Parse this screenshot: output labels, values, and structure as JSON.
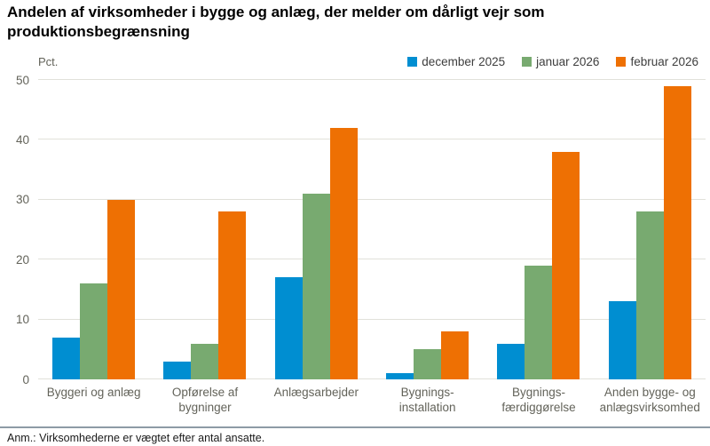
{
  "title": "Andelen af virksomheder i bygge og anlæg, der melder om dårligt vejr som produktionsbegrænsning",
  "unit_label": "Pct.",
  "footnote": "Anm.: Virksomhederne er vægtet efter antal ansatte.",
  "colors": {
    "series_blue": "#008ed1",
    "series_green": "#78aa70",
    "series_orange": "#ee7003"
  },
  "chart_data": {
    "type": "bar",
    "title": "Andelen af virksomheder i bygge og anlæg, der melder om dårligt vejr som produktionsbegrænsning",
    "xlabel": "",
    "ylabel": "Pct.",
    "ylim": [
      0,
      50
    ],
    "yticks": [
      0,
      10,
      20,
      30,
      40,
      50
    ],
    "grid": true,
    "legend_position": "top-right",
    "categories": [
      "Byggeri og anlæg",
      "Opførelse af\nbygninger",
      "Anlægsarbejder",
      "Bygnings-\ninstallation",
      "Bygnings-\nfærdiggørelse",
      "Anden bygge- og\nanlægsvirksomhed"
    ],
    "series": [
      {
        "name": "december 2025",
        "color": "#008ed1",
        "values": [
          7,
          3,
          17,
          1,
          6,
          13
        ]
      },
      {
        "name": "januar 2026",
        "color": "#78aa70",
        "values": [
          16,
          6,
          31,
          5,
          19,
          28
        ]
      },
      {
        "name": "februar 2026",
        "color": "#ee7003",
        "values": [
          30,
          28,
          42,
          8,
          38,
          49
        ]
      }
    ]
  }
}
